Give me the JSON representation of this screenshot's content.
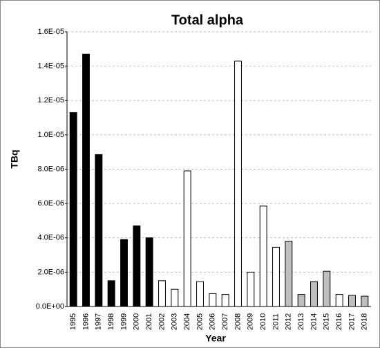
{
  "chart_data": {
    "type": "bar",
    "title": "Total alpha",
    "x_label": "Year",
    "y_label": "TBq",
    "categories": [
      "1995",
      "1996",
      "1997",
      "1998",
      "1999",
      "2000",
      "2001",
      "2002",
      "2003",
      "2004",
      "2005",
      "2006",
      "2007",
      "2008",
      "2009",
      "2010",
      "2011",
      "2012",
      "2013",
      "2014",
      "2015",
      "2016",
      "2017",
      "2018"
    ],
    "values": [
      1.13e-05,
      1.47e-05,
      8.85e-06,
      1.5e-06,
      3.9e-06,
      4.7e-06,
      4e-06,
      1.5e-06,
      1e-06,
      7.9e-06,
      1.45e-06,
      7.5e-07,
      7e-07,
      1.43e-05,
      2e-06,
      5.85e-06,
      3.45e-06,
      3.8e-06,
      7e-07,
      1.45e-06,
      2.05e-06,
      7e-07,
      6.5e-07,
      6e-07
    ],
    "colors": [
      "#000000",
      "#000000",
      "#000000",
      "#000000",
      "#000000",
      "#000000",
      "#000000",
      "#ffffff",
      "#ffffff",
      "#ffffff",
      "#ffffff",
      "#ffffff",
      "#ffffff",
      "#ffffff",
      "#ffffff",
      "#ffffff",
      "#ffffff",
      "#bfbfbf",
      "#bfbfbf",
      "#bfbfbf",
      "#bfbfbf",
      "#ffffff",
      "#bfbfbf",
      "#bfbfbf"
    ],
    "ylim": [
      0,
      1.6e-05
    ],
    "yticks": [
      {
        "value": 0,
        "label": "0.0E+00"
      },
      {
        "value": 2e-06,
        "label": "2.0E-06"
      },
      {
        "value": 4e-06,
        "label": "4.0E-06"
      },
      {
        "value": 6e-06,
        "label": "6.0E-06"
      },
      {
        "value": 8e-06,
        "label": "8.0E-06"
      },
      {
        "value": 1e-05,
        "label": "1.0E-05"
      },
      {
        "value": 1.2e-05,
        "label": "1.2E-05"
      },
      {
        "value": 1.4e-05,
        "label": "1.4E-05"
      },
      {
        "value": 1.6e-05,
        "label": "1.6E-05"
      }
    ],
    "grid": true
  }
}
